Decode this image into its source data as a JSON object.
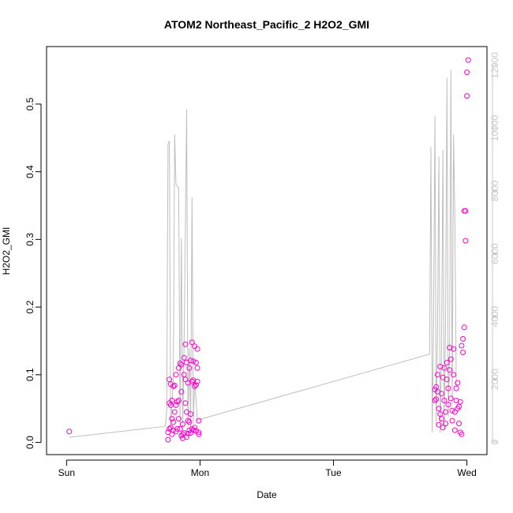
{
  "chart_data": {
    "type": "scatter",
    "title": "ATOM2 Northeast_Pacific_2 H2O2_GMI",
    "xlabel": "Date",
    "ylabel": "H2O2_GMI",
    "x_ticks": [
      {
        "label": "Sun",
        "value": "Sun 00:00"
      },
      {
        "label": "Mon",
        "value": "Mon 00:00"
      },
      {
        "label": "Tue",
        "value": "Tue 00:00"
      },
      {
        "label": "Wed",
        "value": "Wed 00:00"
      }
    ],
    "xlim_days": [
      -0.15,
      3.15
    ],
    "ylim": [
      -0.018,
      0.585
    ],
    "y_ticks": [
      0.0,
      0.1,
      0.2,
      0.3,
      0.4,
      0.5
    ],
    "y_tick_labels": [
      "0.0",
      "0.1",
      "0.2",
      "0.3",
      "0.4",
      "0.5"
    ],
    "y2lim": [
      -400,
      12600
    ],
    "y2_ticks": [
      0,
      2000,
      4000,
      6000,
      8000,
      10000,
      12000
    ],
    "y2_tick_labels": [
      "0",
      "2000",
      "4000",
      "6000",
      "8000",
      "10000",
      "12000"
    ],
    "grid": false,
    "legend": "none",
    "colors": {
      "points": "#ff00cc",
      "secondary_line": "#bebebe",
      "axis": "#000000",
      "secondary_axis": "#c8c8c8"
    },
    "series": [
      {
        "axis": "left",
        "style": "open-circle",
        "points": [
          [
            0.02,
            0.016
          ],
          [
            0.76,
            0.004
          ],
          [
            0.76,
            0.015
          ],
          [
            0.77,
            0.02
          ],
          [
            0.77,
            0.058
          ],
          [
            0.77,
            0.093
          ],
          [
            0.78,
            0.086
          ],
          [
            0.78,
            0.055
          ],
          [
            0.78,
            0.022
          ],
          [
            0.79,
            0.012
          ],
          [
            0.79,
            0.035
          ],
          [
            0.79,
            0.062
          ],
          [
            0.8,
            0.083
          ],
          [
            0.8,
            0.018
          ],
          [
            0.8,
            0.03
          ],
          [
            0.81,
            0.084
          ],
          [
            0.81,
            0.045
          ],
          [
            0.82,
            0.1
          ],
          [
            0.82,
            0.055
          ],
          [
            0.82,
            0.016
          ],
          [
            0.83,
            0.02
          ],
          [
            0.83,
            0.06
          ],
          [
            0.84,
            0.062
          ],
          [
            0.84,
            0.11
          ],
          [
            0.84,
            0.035
          ],
          [
            0.85,
            0.117
          ],
          [
            0.85,
            0.02
          ],
          [
            0.86,
            0.075
          ],
          [
            0.86,
            0.01
          ],
          [
            0.86,
            0.115
          ],
          [
            0.87,
            0.027
          ],
          [
            0.87,
            0.006
          ],
          [
            0.87,
            0.012
          ],
          [
            0.88,
            0.1
          ],
          [
            0.88,
            0.125
          ],
          [
            0.88,
            0.014
          ],
          [
            0.89,
            0.058
          ],
          [
            0.89,
            0.093
          ],
          [
            0.89,
            0.145
          ],
          [
            0.9,
            0.118
          ],
          [
            0.9,
            0.045
          ],
          [
            0.9,
            0.008
          ],
          [
            0.91,
            0.032
          ],
          [
            0.91,
            0.088
          ],
          [
            0.91,
            0.013
          ],
          [
            0.92,
            0.11
          ],
          [
            0.92,
            0.03
          ],
          [
            0.92,
            0.018
          ],
          [
            0.93,
            0.121
          ],
          [
            0.93,
            0.042
          ],
          [
            0.93,
            0.014
          ],
          [
            0.94,
            0.148
          ],
          [
            0.94,
            0.09
          ],
          [
            0.94,
            0.02
          ],
          [
            0.95,
            0.092
          ],
          [
            0.95,
            0.018
          ],
          [
            0.95,
            0.12
          ],
          [
            0.96,
            0.142
          ],
          [
            0.96,
            0.083
          ],
          [
            0.96,
            0.022
          ],
          [
            0.97,
            0.118
          ],
          [
            0.97,
            0.017
          ],
          [
            0.97,
            0.085
          ],
          [
            0.98,
            0.11
          ],
          [
            0.98,
            0.138
          ],
          [
            0.98,
            0.09
          ],
          [
            0.99,
            0.015
          ],
          [
            0.99,
            0.032
          ],
          [
            0.99,
            0.012
          ],
          [
            2.76,
            0.062
          ],
          [
            2.76,
            0.078
          ],
          [
            2.77,
            0.064
          ],
          [
            2.77,
            0.082
          ],
          [
            2.78,
            0.075
          ],
          [
            2.78,
            0.1
          ],
          [
            2.79,
            0.05
          ],
          [
            2.79,
            0.026
          ],
          [
            2.8,
            0.042
          ],
          [
            2.8,
            0.112
          ],
          [
            2.81,
            0.072
          ],
          [
            2.81,
            0.035
          ],
          [
            2.82,
            0.096
          ],
          [
            2.82,
            0.022
          ],
          [
            2.83,
            0.11
          ],
          [
            2.83,
            0.062
          ],
          [
            2.84,
            0.045
          ],
          [
            2.84,
            0.028
          ],
          [
            2.85,
            0.118
          ],
          [
            2.85,
            0.093
          ],
          [
            2.86,
            0.056
          ],
          [
            2.86,
            0.08
          ],
          [
            2.87,
            0.14
          ],
          [
            2.87,
            0.107
          ],
          [
            2.88,
            0.123
          ],
          [
            2.88,
            0.065
          ],
          [
            2.89,
            0.047
          ],
          [
            2.89,
            0.032
          ],
          [
            2.9,
            0.138
          ],
          [
            2.9,
            0.1
          ],
          [
            2.91,
            0.045
          ],
          [
            2.91,
            0.018
          ],
          [
            2.92,
            0.062
          ],
          [
            2.92,
            0.08
          ],
          [
            2.93,
            0.088
          ],
          [
            2.93,
            0.05
          ],
          [
            2.94,
            0.053
          ],
          [
            2.94,
            0.028
          ],
          [
            2.95,
            0.015
          ],
          [
            2.95,
            0.06
          ],
          [
            2.96,
            0.012
          ],
          [
            2.96,
            0.143
          ],
          [
            2.97,
            0.133
          ],
          [
            2.97,
            0.153
          ],
          [
            2.98,
            0.17
          ],
          [
            2.98,
            0.342
          ],
          [
            2.99,
            0.342
          ],
          [
            2.99,
            0.298
          ],
          [
            3.0,
            0.512
          ],
          [
            3.0,
            0.547
          ],
          [
            3.01,
            0.565
          ]
        ]
      },
      {
        "axis": "right",
        "style": "line",
        "points": [
          [
            0.02,
            150
          ],
          [
            0.74,
            500
          ],
          [
            0.75,
            1000
          ],
          [
            0.76,
            9500
          ],
          [
            0.77,
            9600
          ],
          [
            0.78,
            400
          ],
          [
            0.8,
            2000
          ],
          [
            0.81,
            9800
          ],
          [
            0.82,
            8200
          ],
          [
            0.84,
            8100
          ],
          [
            0.85,
            500
          ],
          [
            0.86,
            6500
          ],
          [
            0.87,
            400
          ],
          [
            0.88,
            3000
          ],
          [
            0.9,
            10600
          ],
          [
            0.91,
            500
          ],
          [
            0.92,
            3000
          ],
          [
            0.93,
            500
          ],
          [
            0.94,
            7800
          ],
          [
            0.95,
            600
          ],
          [
            0.96,
            2000
          ],
          [
            0.98,
            700
          ],
          [
            2.72,
            2800
          ],
          [
            2.73,
            9400
          ],
          [
            2.74,
            300
          ],
          [
            2.75,
            4000
          ],
          [
            2.76,
            10400
          ],
          [
            2.77,
            500
          ],
          [
            2.78,
            3500
          ],
          [
            2.79,
            9100
          ],
          [
            2.8,
            300
          ],
          [
            2.81,
            3000
          ],
          [
            2.82,
            9300
          ],
          [
            2.83,
            400
          ],
          [
            2.84,
            4000
          ],
          [
            2.85,
            11600
          ],
          [
            2.86,
            800
          ],
          [
            2.87,
            3000
          ],
          [
            2.88,
            11850
          ],
          [
            2.89,
            1200
          ],
          [
            2.9,
            9800
          ],
          [
            2.91,
            7000
          ],
          [
            2.92,
            1800
          ]
        ]
      }
    ]
  }
}
